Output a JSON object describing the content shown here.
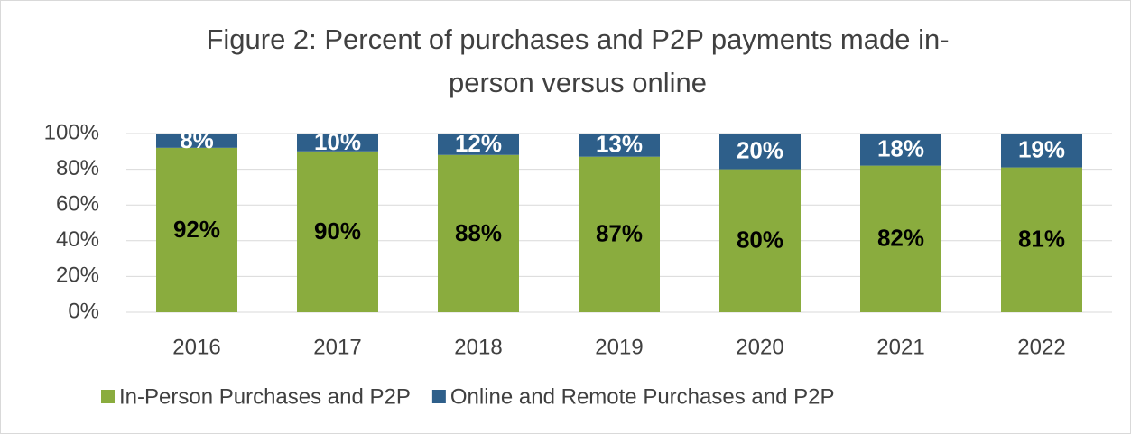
{
  "chart_data": {
    "type": "stacked-bar",
    "title": "Figure 2: Percent of purchases and P2P payments made in-person versus online",
    "categories": [
      "2016",
      "2017",
      "2018",
      "2019",
      "2020",
      "2021",
      "2022"
    ],
    "series": [
      {
        "name": "In-Person Purchases and P2P",
        "color": "#8aac3e",
        "label_color": "#000000",
        "values": [
          92,
          90,
          88,
          87,
          80,
          82,
          81
        ],
        "value_labels": [
          "92%",
          "90%",
          "88%",
          "87%",
          "80%",
          "82%",
          "81%"
        ]
      },
      {
        "name": "Online and Remote Purchases and P2P",
        "color": "#2e5f8a",
        "label_color": "#ffffff",
        "values": [
          8,
          10,
          12,
          13,
          20,
          18,
          19
        ],
        "value_labels": [
          "8%",
          "10%",
          "12%",
          "13%",
          "20%",
          "18%",
          "19%"
        ]
      }
    ],
    "ylim": [
      0,
      100
    ],
    "yticks": [
      {
        "value": 0,
        "label": "0%"
      },
      {
        "value": 20,
        "label": "20%"
      },
      {
        "value": 40,
        "label": "40%"
      },
      {
        "value": 60,
        "label": "60%"
      },
      {
        "value": 80,
        "label": "80%"
      },
      {
        "value": 100,
        "label": "100%"
      }
    ],
    "grid": true,
    "legend": "bottom"
  }
}
